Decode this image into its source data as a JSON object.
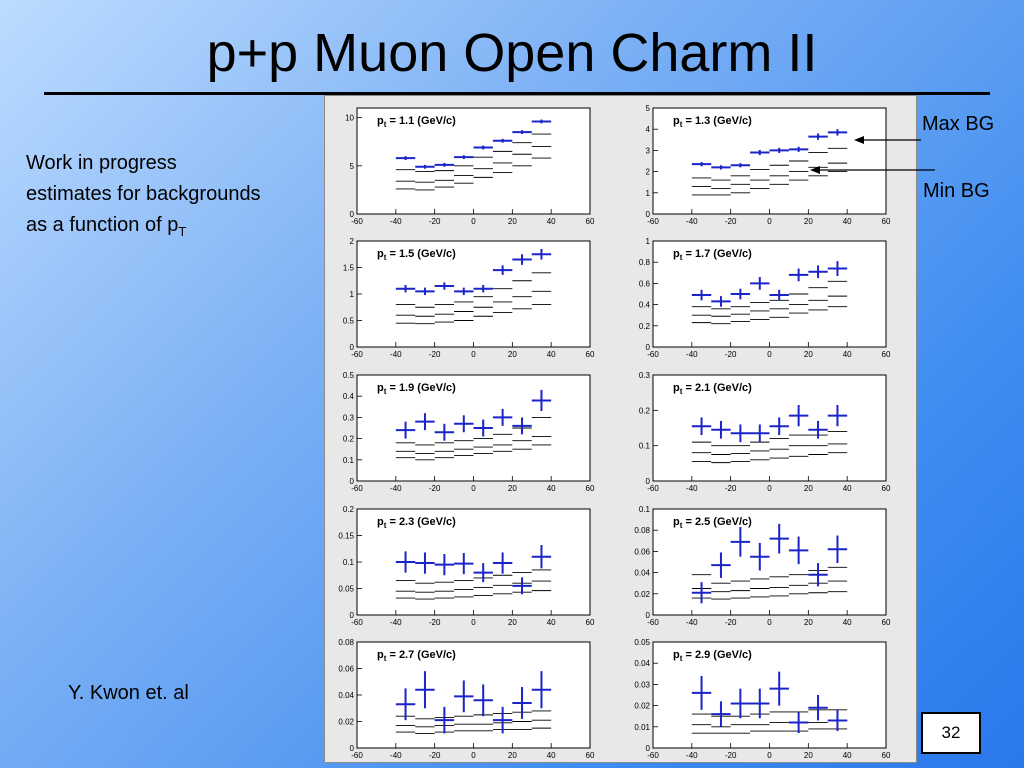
{
  "slide": {
    "title": "p+p Muon Open Charm II",
    "note_lines": [
      "Work in progress",
      "estimates for backgrounds"
    ],
    "note_last": "as a function of p",
    "note_sub": "T",
    "author": "Y. Kwon et. al",
    "page_number": "32",
    "annotation_max": "Max BG",
    "annotation_min": "Min BG"
  },
  "colors": {
    "data": "#1a24c8",
    "band": "#000000",
    "frame": "#ffffff"
  },
  "chart_data": [
    {
      "type": "scatter",
      "label_prefix": "p",
      "label_sub": "t",
      "label": " = 1.1 (GeV/c)",
      "ylim": [
        0,
        11
      ],
      "yticks": [
        0,
        5,
        10
      ],
      "ytick_labels": [
        "0",
        "5",
        "10"
      ],
      "xlim": [
        -60,
        60
      ],
      "xticks": [
        -60,
        -40,
        -20,
        0,
        20,
        40,
        60
      ],
      "x": [
        -35,
        -25,
        -15,
        -5,
        5,
        15,
        25,
        35
      ],
      "y": [
        5.8,
        4.9,
        5.1,
        5.9,
        6.9,
        7.6,
        8.5,
        9.6
      ],
      "yerr": [
        0.2,
        0.2,
        0.2,
        0.2,
        0.2,
        0.2,
        0.2,
        0.2
      ],
      "max_bg": [
        4.6,
        4.4,
        4.5,
        5.0,
        5.9,
        6.5,
        7.4,
        8.3
      ],
      "min_bg": [
        3.4,
        3.3,
        3.5,
        4.0,
        4.7,
        5.3,
        6.2,
        7.0
      ],
      "min2_bg": [
        2.6,
        2.5,
        2.8,
        3.2,
        3.8,
        4.3,
        5.0,
        5.8
      ]
    },
    {
      "type": "scatter",
      "label_prefix": "p",
      "label_sub": "t",
      "label": " = 1.3 (GeV/c)",
      "ylim": [
        0,
        5
      ],
      "yticks": [
        0,
        1,
        2,
        3,
        4,
        5
      ],
      "ytick_labels": [
        "0",
        "1",
        "2",
        "3",
        "4",
        "5"
      ],
      "xlim": [
        -60,
        60
      ],
      "xticks": [
        -60,
        -40,
        -20,
        0,
        20,
        40,
        60
      ],
      "x": [
        -35,
        -25,
        -15,
        -5,
        5,
        15,
        25,
        35
      ],
      "y": [
        2.35,
        2.2,
        2.3,
        2.9,
        3.0,
        3.05,
        3.65,
        3.85
      ],
      "yerr": [
        0.1,
        0.1,
        0.1,
        0.12,
        0.12,
        0.12,
        0.15,
        0.15
      ],
      "max_bg": [
        1.7,
        1.6,
        1.8,
        2.1,
        2.3,
        2.5,
        2.9,
        3.1
      ],
      "min_bg": [
        1.3,
        1.2,
        1.4,
        1.6,
        1.8,
        2.0,
        2.2,
        2.4
      ],
      "min2_bg": [
        0.9,
        0.9,
        1.0,
        1.2,
        1.4,
        1.6,
        1.8,
        2.0
      ]
    },
    {
      "type": "scatter",
      "label_prefix": "p",
      "label_sub": "t",
      "label": " = 1.5 (GeV/c)",
      "ylim": [
        0,
        2
      ],
      "yticks": [
        0,
        0.5,
        1,
        1.5,
        2
      ],
      "ytick_labels": [
        "0",
        "0.5",
        "1",
        "1.5",
        "2"
      ],
      "xlim": [
        -60,
        60
      ],
      "xticks": [
        -60,
        -40,
        -20,
        0,
        20,
        40,
        60
      ],
      "x": [
        -35,
        -25,
        -15,
        -5,
        5,
        15,
        25,
        35
      ],
      "y": [
        1.1,
        1.05,
        1.15,
        1.05,
        1.1,
        1.45,
        1.65,
        1.75
      ],
      "yerr": [
        0.07,
        0.07,
        0.07,
        0.07,
        0.07,
        0.09,
        0.1,
        0.1
      ],
      "max_bg": [
        0.8,
        0.75,
        0.8,
        0.85,
        0.95,
        1.1,
        1.25,
        1.4
      ],
      "min_bg": [
        0.6,
        0.58,
        0.62,
        0.67,
        0.75,
        0.85,
        0.95,
        1.05
      ],
      "min2_bg": [
        0.45,
        0.44,
        0.47,
        0.5,
        0.58,
        0.65,
        0.72,
        0.8
      ]
    },
    {
      "type": "scatter",
      "label_prefix": "p",
      "label_sub": "t",
      "label": " = 1.7 (GeV/c)",
      "ylim": [
        0,
        1
      ],
      "yticks": [
        0,
        0.2,
        0.4,
        0.6,
        0.8,
        1
      ],
      "ytick_labels": [
        "0",
        "0.2",
        "0.4",
        "0.6",
        "0.8",
        "1"
      ],
      "xlim": [
        -60,
        60
      ],
      "xticks": [
        -60,
        -40,
        -20,
        0,
        20,
        40,
        60
      ],
      "x": [
        -35,
        -25,
        -15,
        -5,
        5,
        15,
        25,
        35
      ],
      "y": [
        0.49,
        0.43,
        0.5,
        0.6,
        0.49,
        0.68,
        0.71,
        0.74
      ],
      "yerr": [
        0.05,
        0.05,
        0.05,
        0.06,
        0.05,
        0.06,
        0.06,
        0.07
      ],
      "max_bg": [
        0.38,
        0.36,
        0.38,
        0.42,
        0.44,
        0.5,
        0.56,
        0.62
      ],
      "min_bg": [
        0.3,
        0.29,
        0.31,
        0.34,
        0.36,
        0.4,
        0.44,
        0.48
      ],
      "min2_bg": [
        0.23,
        0.22,
        0.24,
        0.26,
        0.28,
        0.32,
        0.35,
        0.38
      ]
    },
    {
      "type": "scatter",
      "label_prefix": "p",
      "label_sub": "t",
      "label": " = 1.9 (GeV/c)",
      "ylim": [
        0,
        0.5
      ],
      "yticks": [
        0,
        0.1,
        0.2,
        0.3,
        0.4,
        0.5
      ],
      "ytick_labels": [
        "0",
        "0.1",
        "0.2",
        "0.3",
        "0.4",
        "0.5"
      ],
      "xlim": [
        -60,
        60
      ],
      "xticks": [
        -60,
        -40,
        -20,
        0,
        20,
        40,
        60
      ],
      "x": [
        -35,
        -25,
        -15,
        -5,
        5,
        15,
        25,
        35
      ],
      "y": [
        0.24,
        0.28,
        0.23,
        0.27,
        0.25,
        0.3,
        0.26,
        0.38
      ],
      "yerr": [
        0.04,
        0.04,
        0.04,
        0.04,
        0.04,
        0.04,
        0.04,
        0.05
      ],
      "max_bg": [
        0.18,
        0.17,
        0.18,
        0.19,
        0.2,
        0.22,
        0.25,
        0.3
      ],
      "min_bg": [
        0.14,
        0.13,
        0.14,
        0.15,
        0.16,
        0.17,
        0.19,
        0.21
      ],
      "min2_bg": [
        0.11,
        0.1,
        0.11,
        0.12,
        0.13,
        0.14,
        0.15,
        0.17
      ]
    },
    {
      "type": "scatter",
      "label_prefix": "p",
      "label_sub": "t",
      "label": " = 2.1 (GeV/c)",
      "ylim": [
        0,
        0.3
      ],
      "yticks": [
        0,
        0.1,
        0.2,
        0.3
      ],
      "ytick_labels": [
        "0",
        "0.1",
        "0.2",
        "0.3"
      ],
      "xlim": [
        -60,
        60
      ],
      "xticks": [
        -60,
        -40,
        -20,
        0,
        20,
        40,
        60
      ],
      "x": [
        -35,
        -25,
        -15,
        -5,
        5,
        15,
        25,
        35
      ],
      "y": [
        0.155,
        0.145,
        0.135,
        0.135,
        0.155,
        0.185,
        0.145,
        0.185
      ],
      "yerr": [
        0.025,
        0.025,
        0.025,
        0.025,
        0.025,
        0.03,
        0.025,
        0.03
      ],
      "max_bg": [
        0.11,
        0.1,
        0.1,
        0.11,
        0.12,
        0.13,
        0.13,
        0.14
      ],
      "min_bg": [
        0.08,
        0.075,
        0.078,
        0.085,
        0.09,
        0.1,
        0.1,
        0.105
      ],
      "min2_bg": [
        0.055,
        0.052,
        0.055,
        0.06,
        0.065,
        0.07,
        0.075,
        0.08
      ]
    },
    {
      "type": "scatter",
      "label_prefix": "p",
      "label_sub": "t",
      "label": " = 2.3 (GeV/c)",
      "ylim": [
        0,
        0.2
      ],
      "yticks": [
        0,
        0.05,
        0.1,
        0.15,
        0.2
      ],
      "ytick_labels": [
        "0",
        "0.05",
        "0.1",
        "0.15",
        "0.2"
      ],
      "xlim": [
        -60,
        60
      ],
      "xticks": [
        -60,
        -40,
        -20,
        0,
        20,
        40,
        60
      ],
      "x": [
        -35,
        -25,
        -15,
        -5,
        5,
        15,
        25,
        35
      ],
      "y": [
        0.1,
        0.098,
        0.095,
        0.097,
        0.08,
        0.098,
        0.055,
        0.11
      ],
      "yerr": [
        0.02,
        0.02,
        0.02,
        0.02,
        0.018,
        0.02,
        0.016,
        0.022
      ],
      "max_bg": [
        0.065,
        0.06,
        0.062,
        0.065,
        0.07,
        0.075,
        0.08,
        0.085
      ],
      "min_bg": [
        0.045,
        0.043,
        0.045,
        0.048,
        0.052,
        0.056,
        0.06,
        0.064
      ],
      "min2_bg": [
        0.032,
        0.03,
        0.032,
        0.034,
        0.037,
        0.04,
        0.043,
        0.046
      ]
    },
    {
      "type": "scatter",
      "label_prefix": "p",
      "label_sub": "t",
      "label": " = 2.5 (GeV/c)",
      "ylim": [
        0,
        0.1
      ],
      "yticks": [
        0,
        0.02,
        0.04,
        0.06,
        0.08,
        0.1
      ],
      "ytick_labels": [
        "0",
        "0.02",
        "0.04",
        "0.06",
        "0.08",
        "0.1"
      ],
      "xlim": [
        -60,
        60
      ],
      "xticks": [
        -60,
        -40,
        -20,
        0,
        20,
        40,
        60
      ],
      "x": [
        -35,
        -25,
        -15,
        -5,
        5,
        15,
        25,
        35
      ],
      "y": [
        0.021,
        0.047,
        0.069,
        0.055,
        0.072,
        0.061,
        0.038,
        0.062
      ],
      "yerr": [
        0.01,
        0.012,
        0.014,
        0.013,
        0.014,
        0.013,
        0.011,
        0.013
      ],
      "max_bg": [
        0.038,
        0.03,
        0.032,
        0.034,
        0.036,
        0.038,
        0.042,
        0.045
      ],
      "min_bg": [
        0.025,
        0.022,
        0.023,
        0.025,
        0.026,
        0.028,
        0.03,
        0.032
      ],
      "min2_bg": [
        0.016,
        0.015,
        0.016,
        0.017,
        0.018,
        0.02,
        0.021,
        0.022
      ]
    },
    {
      "type": "scatter",
      "label_prefix": "p",
      "label_sub": "t",
      "label": " = 2.7 (GeV/c)",
      "ylim": [
        0,
        0.08
      ],
      "yticks": [
        0,
        0.02,
        0.04,
        0.06,
        0.08
      ],
      "ytick_labels": [
        "0",
        "0.02",
        "0.04",
        "0.06",
        "0.08"
      ],
      "xlim": [
        -60,
        60
      ],
      "xticks": [
        -60,
        -40,
        -20,
        0,
        20,
        40,
        60
      ],
      "x": [
        -35,
        -25,
        -15,
        -5,
        5,
        15,
        25,
        35
      ],
      "y": [
        0.033,
        0.044,
        0.021,
        0.039,
        0.036,
        0.021,
        0.034,
        0.044
      ],
      "yerr": [
        0.012,
        0.014,
        0.01,
        0.012,
        0.012,
        0.01,
        0.012,
        0.014
      ],
      "max_bg": [
        0.024,
        0.022,
        0.023,
        0.024,
        0.025,
        0.026,
        0.027,
        0.028
      ],
      "min_bg": [
        0.017,
        0.016,
        0.017,
        0.018,
        0.018,
        0.019,
        0.02,
        0.021
      ],
      "min2_bg": [
        0.012,
        0.011,
        0.012,
        0.013,
        0.013,
        0.014,
        0.014,
        0.015
      ]
    },
    {
      "type": "scatter",
      "label_prefix": "p",
      "label_sub": "t",
      "label": " = 2.9 (GeV/c)",
      "ylim": [
        0,
        0.05
      ],
      "yticks": [
        0,
        0.01,
        0.02,
        0.03,
        0.04,
        0.05
      ],
      "ytick_labels": [
        "0",
        "0.01",
        "0.02",
        "0.03",
        "0.04",
        "0.05"
      ],
      "xlim": [
        -60,
        60
      ],
      "xticks": [
        -60,
        -40,
        -20,
        0,
        20,
        40,
        60
      ],
      "x": [
        -35,
        -25,
        -15,
        -5,
        5,
        15,
        25,
        35
      ],
      "y": [
        0.026,
        0.016,
        0.021,
        0.021,
        0.028,
        0.012,
        0.019,
        0.013
      ],
      "yerr": [
        0.008,
        0.006,
        0.007,
        0.007,
        0.008,
        0.005,
        0.006,
        0.005
      ],
      "max_bg": [
        0.016,
        0.015,
        0.015,
        0.016,
        0.017,
        0.017,
        0.018,
        0.018
      ],
      "min_bg": [
        0.011,
        0.01,
        0.011,
        0.011,
        0.012,
        0.012,
        0.012,
        0.013
      ],
      "min2_bg": [
        0.007,
        0.007,
        0.007,
        0.008,
        0.008,
        0.008,
        0.009,
        0.009
      ]
    }
  ]
}
